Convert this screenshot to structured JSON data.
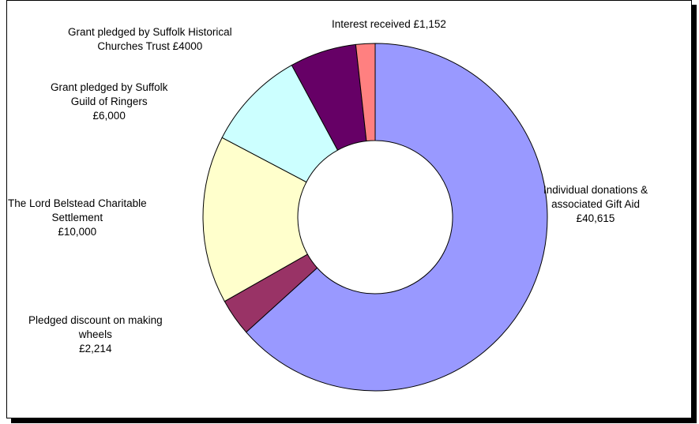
{
  "chart_data": {
    "type": "pie",
    "variant": "donut",
    "series": [
      {
        "values": [
          40615,
          2214,
          10000,
          6000,
          4000,
          1152
        ],
        "colors": [
          "#9999ff",
          "#993366",
          "#ffffcc",
          "#ccffff",
          "#660066",
          "#ff8080"
        ]
      }
    ],
    "data_labels": [
      {
        "lines": [
          "Individual donations &",
          "associated Gift Aid",
          "£40,615"
        ]
      },
      {
        "lines": [
          "Pledged discount on making",
          "wheels",
          "£2,214"
        ]
      },
      {
        "lines": [
          "The Lord Belstead Charitable",
          "Settlement",
          "£10,000"
        ]
      },
      {
        "lines": [
          "Grant pledged by Suffolk",
          "Guild of Ringers",
          "£6,000"
        ]
      },
      {
        "lines": [
          "Grant pledged by Suffolk Historical",
          "Churches Trust £4000"
        ]
      },
      {
        "lines": [
          "Interest received £1,152"
        ]
      }
    ],
    "legend": "none"
  }
}
